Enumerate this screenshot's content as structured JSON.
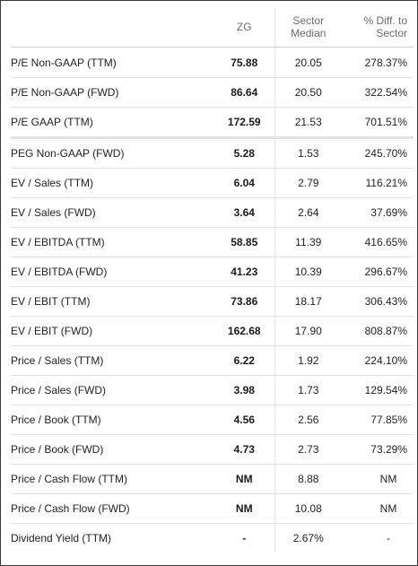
{
  "table": {
    "headers": {
      "metric": "",
      "ticker": "ZG",
      "sector_median": "Sector Median",
      "pct_diff": "% Diff. to Sector"
    },
    "rows": [
      {
        "metric": "P/E Non-GAAP (TTM)",
        "zg": "75.88",
        "median": "20.05",
        "diff": "278.37%"
      },
      {
        "metric": "P/E Non-GAAP (FWD)",
        "zg": "86.64",
        "median": "20.50",
        "diff": "322.54%"
      },
      {
        "metric": "P/E GAAP (TTM)",
        "zg": "172.59",
        "median": "21.53",
        "diff": "701.51%"
      },
      {
        "metric": "PEG Non-GAAP (FWD)",
        "zg": "5.28",
        "median": "1.53",
        "diff": "245.70%"
      },
      {
        "metric": "EV / Sales (TTM)",
        "zg": "6.04",
        "median": "2.79",
        "diff": "116.21%"
      },
      {
        "metric": "EV / Sales (FWD)",
        "zg": "3.64",
        "median": "2.64",
        "diff": "37.69%"
      },
      {
        "metric": "EV / EBITDA (TTM)",
        "zg": "58.85",
        "median": "11.39",
        "diff": "416.65%"
      },
      {
        "metric": "EV / EBITDA (FWD)",
        "zg": "41.23",
        "median": "10.39",
        "diff": "296.67%"
      },
      {
        "metric": "EV / EBIT (TTM)",
        "zg": "73.86",
        "median": "18.17",
        "diff": "306.43%"
      },
      {
        "metric": "EV / EBIT (FWD)",
        "zg": "162.68",
        "median": "17.90",
        "diff": "808.87%"
      },
      {
        "metric": "Price / Sales (TTM)",
        "zg": "6.22",
        "median": "1.92",
        "diff": "224.10%"
      },
      {
        "metric": "Price / Sales (FWD)",
        "zg": "3.98",
        "median": "1.73",
        "diff": "129.54%"
      },
      {
        "metric": "Price / Book (TTM)",
        "zg": "4.56",
        "median": "2.56",
        "diff": "77.85%"
      },
      {
        "metric": "Price / Book (FWD)",
        "zg": "4.73",
        "median": "2.73",
        "diff": "73.29%"
      },
      {
        "metric": "Price / Cash Flow (TTM)",
        "zg": "NM",
        "median": "8.88",
        "diff": "NM"
      },
      {
        "metric": "Price / Cash Flow (FWD)",
        "zg": "NM",
        "median": "10.08",
        "diff": "NM"
      },
      {
        "metric": "Dividend Yield (TTM)",
        "zg": "-",
        "median": "2.67%",
        "diff": "-"
      }
    ]
  }
}
